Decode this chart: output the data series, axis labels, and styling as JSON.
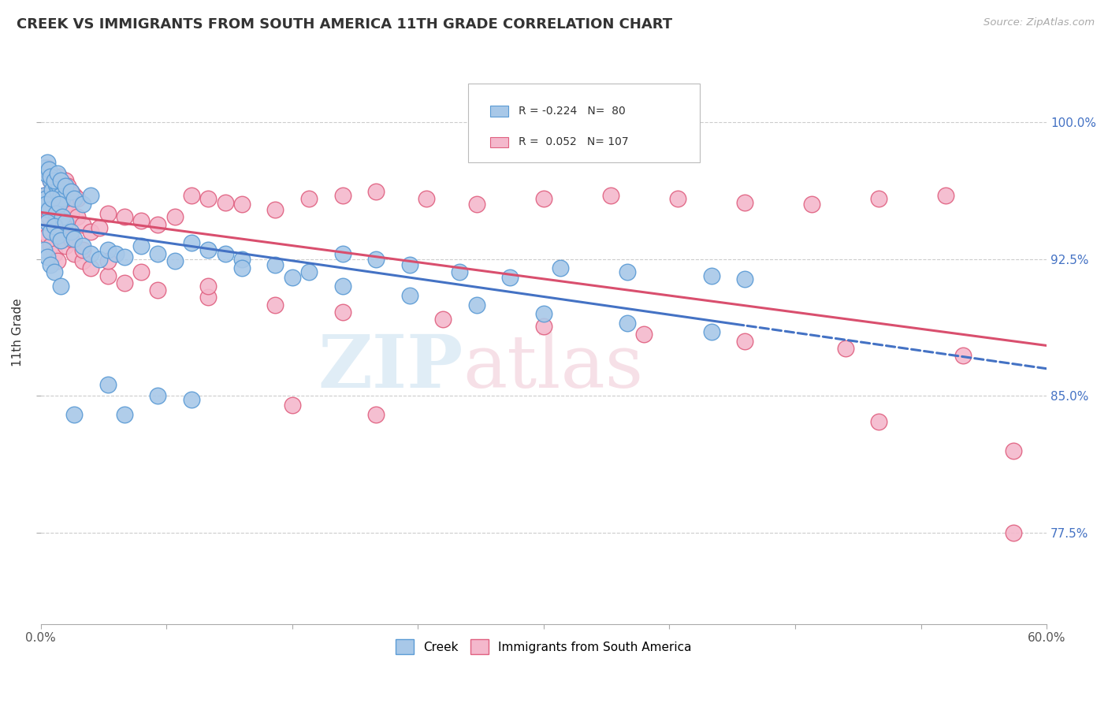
{
  "title": "CREEK VS IMMIGRANTS FROM SOUTH AMERICA 11TH GRADE CORRELATION CHART",
  "source_text": "Source: ZipAtlas.com",
  "ylabel": "11th Grade",
  "ytick_labels": [
    "77.5%",
    "85.0%",
    "92.5%",
    "100.0%"
  ],
  "ytick_values": [
    0.775,
    0.85,
    0.925,
    1.0
  ],
  "xmin": 0.0,
  "xmax": 0.6,
  "ymin": 0.725,
  "ymax": 1.045,
  "legend_creek": "Creek",
  "legend_immigrants": "Immigrants from South America",
  "creek_R": "-0.224",
  "creek_N": "80",
  "immigrants_R": "0.052",
  "immigrants_N": "107",
  "creek_color": "#A8C8E8",
  "creek_edge_color": "#5B9BD5",
  "immigrants_color": "#F4B8CC",
  "immigrants_edge_color": "#E06080",
  "creek_line_color": "#4472C4",
  "immigrants_line_color": "#D94F6E",
  "background_color": "#FFFFFF",
  "grid_color": "#CCCCCC",
  "creek_x": [
    0.002,
    0.003,
    0.004,
    0.005,
    0.006,
    0.007,
    0.008,
    0.009,
    0.01,
    0.011,
    0.012,
    0.013,
    0.003,
    0.005,
    0.007,
    0.009,
    0.011,
    0.013,
    0.004,
    0.006,
    0.008,
    0.01,
    0.012,
    0.015,
    0.018,
    0.02,
    0.025,
    0.03,
    0.035,
    0.04,
    0.045,
    0.05,
    0.06,
    0.07,
    0.08,
    0.09,
    0.1,
    0.11,
    0.12,
    0.14,
    0.16,
    0.18,
    0.2,
    0.22,
    0.25,
    0.28,
    0.31,
    0.35,
    0.4,
    0.42,
    0.002,
    0.003,
    0.004,
    0.005,
    0.006,
    0.008,
    0.01,
    0.012,
    0.015,
    0.018,
    0.02,
    0.025,
    0.03,
    0.04,
    0.05,
    0.07,
    0.09,
    0.12,
    0.15,
    0.18,
    0.22,
    0.26,
    0.3,
    0.35,
    0.4,
    0.002,
    0.004,
    0.006,
    0.008,
    0.012,
    0.02
  ],
  "creek_y": [
    0.96,
    0.958,
    0.955,
    0.953,
    0.968,
    0.963,
    0.97,
    0.966,
    0.962,
    0.965,
    0.96,
    0.958,
    0.955,
    0.952,
    0.958,
    0.95,
    0.955,
    0.948,
    0.945,
    0.94,
    0.943,
    0.938,
    0.935,
    0.945,
    0.94,
    0.936,
    0.932,
    0.928,
    0.925,
    0.93,
    0.928,
    0.926,
    0.932,
    0.928,
    0.924,
    0.934,
    0.93,
    0.928,
    0.925,
    0.922,
    0.918,
    0.928,
    0.925,
    0.922,
    0.918,
    0.915,
    0.92,
    0.918,
    0.916,
    0.914,
    0.975,
    0.972,
    0.978,
    0.974,
    0.97,
    0.968,
    0.972,
    0.968,
    0.965,
    0.962,
    0.958,
    0.955,
    0.96,
    0.856,
    0.84,
    0.85,
    0.848,
    0.92,
    0.915,
    0.91,
    0.905,
    0.9,
    0.895,
    0.89,
    0.885,
    0.93,
    0.926,
    0.922,
    0.918,
    0.91,
    0.84
  ],
  "immigrants_x": [
    0.002,
    0.003,
    0.004,
    0.005,
    0.006,
    0.007,
    0.008,
    0.009,
    0.01,
    0.011,
    0.012,
    0.013,
    0.014,
    0.015,
    0.016,
    0.018,
    0.02,
    0.022,
    0.003,
    0.005,
    0.007,
    0.009,
    0.011,
    0.013,
    0.015,
    0.018,
    0.022,
    0.025,
    0.03,
    0.035,
    0.04,
    0.05,
    0.06,
    0.07,
    0.08,
    0.09,
    0.1,
    0.11,
    0.12,
    0.14,
    0.16,
    0.18,
    0.2,
    0.23,
    0.26,
    0.3,
    0.34,
    0.38,
    0.42,
    0.46,
    0.5,
    0.54,
    0.58,
    0.002,
    0.004,
    0.006,
    0.008,
    0.01,
    0.012,
    0.015,
    0.02,
    0.025,
    0.03,
    0.04,
    0.05,
    0.07,
    0.1,
    0.14,
    0.18,
    0.24,
    0.3,
    0.36,
    0.42,
    0.48,
    0.55,
    0.003,
    0.005,
    0.008,
    0.012,
    0.018,
    0.025,
    0.04,
    0.06,
    0.1,
    0.15,
    0.2,
    0.5,
    0.58
  ],
  "immigrants_y": [
    0.96,
    0.958,
    0.975,
    0.972,
    0.968,
    0.97,
    0.966,
    0.968,
    0.965,
    0.97,
    0.968,
    0.965,
    0.962,
    0.968,
    0.965,
    0.962,
    0.96,
    0.958,
    0.958,
    0.955,
    0.96,
    0.955,
    0.962,
    0.958,
    0.955,
    0.95,
    0.948,
    0.944,
    0.94,
    0.942,
    0.95,
    0.948,
    0.946,
    0.944,
    0.948,
    0.96,
    0.958,
    0.956,
    0.955,
    0.952,
    0.958,
    0.96,
    0.962,
    0.958,
    0.955,
    0.958,
    0.96,
    0.958,
    0.956,
    0.955,
    0.958,
    0.96,
    0.82,
    0.94,
    0.938,
    0.932,
    0.928,
    0.924,
    0.935,
    0.932,
    0.928,
    0.924,
    0.92,
    0.916,
    0.912,
    0.908,
    0.904,
    0.9,
    0.896,
    0.892,
    0.888,
    0.884,
    0.88,
    0.876,
    0.872,
    0.952,
    0.948,
    0.944,
    0.94,
    0.936,
    0.93,
    0.924,
    0.918,
    0.91,
    0.845,
    0.84,
    0.836,
    0.775
  ]
}
